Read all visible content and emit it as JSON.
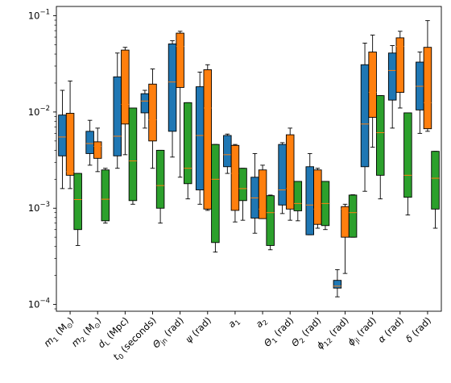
{
  "chart_data": {
    "type": "box",
    "y_scale": "log",
    "ylim": [
      8.5e-05,
      0.125
    ],
    "y_ticks": [
      {
        "value": 0.0001,
        "base": "10",
        "exp": "−4"
      },
      {
        "value": 0.001,
        "base": "10",
        "exp": "−3"
      },
      {
        "value": 0.01,
        "base": "10",
        "exp": "−2"
      },
      {
        "value": 0.1,
        "base": "10",
        "exp": "−1"
      }
    ],
    "categories": [
      {
        "main": "m",
        "sub": "1",
        "unit": " (M",
        "unit_sub": "⊙",
        "unit_end": ")"
      },
      {
        "main": "m",
        "sub": "2",
        "unit": " (M",
        "unit_sub": "⊙",
        "unit_end": ")"
      },
      {
        "main": "d",
        "sub": "L",
        "unit": " (Mpc)",
        "unit_sub": "",
        "unit_end": ""
      },
      {
        "main": "t",
        "sub": "0",
        "unit": " (seconds)",
        "unit_sub": "",
        "unit_end": ""
      },
      {
        "main": "Θ",
        "sub": "jn",
        "unit": " (rad)",
        "unit_sub": "",
        "unit_end": ""
      },
      {
        "main": "ψ",
        "sub": "",
        "unit": " (rad)",
        "unit_sub": "",
        "unit_end": ""
      },
      {
        "main": "a",
        "sub": "1",
        "unit": "",
        "unit_sub": "",
        "unit_end": ""
      },
      {
        "main": "a",
        "sub": "2",
        "unit": "",
        "unit_sub": "",
        "unit_end": ""
      },
      {
        "main": "Θ",
        "sub": "1",
        "unit": " (rad)",
        "unit_sub": "",
        "unit_end": ""
      },
      {
        "main": "Θ",
        "sub": "2",
        "unit": " (rad)",
        "unit_sub": "",
        "unit_end": ""
      },
      {
        "main": "ϕ",
        "sub": "12",
        "unit": " (rad)",
        "unit_sub": "",
        "unit_end": ""
      },
      {
        "main": "ϕ",
        "sub": "jl",
        "unit": " (rad)",
        "unit_sub": "",
        "unit_end": ""
      },
      {
        "main": "α",
        "sub": "",
        "unit": " (rad)",
        "unit_sub": "",
        "unit_end": ""
      },
      {
        "main": "δ",
        "sub": "",
        "unit": " (rad)",
        "unit_sub": "",
        "unit_end": ""
      }
    ],
    "series": [
      {
        "color": "#1f77b4",
        "boxes": [
          {
            "whislo": 0.0016,
            "q1": 0.0035,
            "med": 0.0055,
            "q3": 0.0093,
            "whishi": 0.0168
          },
          {
            "whislo": 0.0028,
            "q1": 0.0037,
            "med": 0.0047,
            "q3": 0.0063,
            "whishi": 0.0082
          },
          {
            "whislo": 0.0026,
            "q1": 0.0035,
            "med": 0.0056,
            "q3": 0.0232,
            "whishi": 0.041
          },
          {
            "whislo": 0.0068,
            "q1": 0.0098,
            "med": 0.013,
            "q3": 0.0155,
            "whishi": 0.0168
          },
          {
            "whislo": 0.0034,
            "q1": 0.0063,
            "med": 0.0205,
            "q3": 0.051,
            "whishi": 0.055
          },
          {
            "whislo": 0.0011,
            "q1": 0.00155,
            "med": 0.0057,
            "q3": 0.0183,
            "whishi": 0.026
          },
          {
            "whislo": 0.0023,
            "q1": 0.0027,
            "med": 0.0036,
            "q3": 0.0057,
            "whishi": 0.0059
          },
          {
            "whislo": 0.00055,
            "q1": 0.00079,
            "med": 0.00128,
            "q3": 0.0021,
            "whishi": 0.0037
          },
          {
            "whislo": 0.00088,
            "q1": 0.00108,
            "med": 0.00155,
            "q3": 0.0046,
            "whishi": 0.0048
          },
          {
            "whislo": 0.00053,
            "q1": 0.00053,
            "med": 0.00108,
            "q3": 0.0027,
            "whishi": 0.0037
          },
          {
            "whislo": 0.00012,
            "q1": 0.000148,
            "med": 0.000155,
            "q3": 0.000178,
            "whishi": 0.00023
          },
          {
            "whislo": 0.0015,
            "q1": 0.0027,
            "med": 0.0075,
            "q3": 0.031,
            "whishi": 0.052
          },
          {
            "whislo": 0.0068,
            "q1": 0.0133,
            "med": 0.027,
            "q3": 0.041,
            "whishi": 0.049
          },
          {
            "whislo": 0.006,
            "q1": 0.0105,
            "med": 0.0185,
            "q3": 0.033,
            "whishi": 0.042
          }
        ]
      },
      {
        "color": "#ff7f0e",
        "boxes": [
          {
            "whislo": 0.0016,
            "q1": 0.0022,
            "med": 0.0024,
            "q3": 0.0097,
            "whishi": 0.021
          },
          {
            "whislo": 0.0024,
            "q1": 0.0033,
            "med": 0.0044,
            "q3": 0.0049,
            "whishi": 0.0068
          },
          {
            "whislo": 0.0036,
            "q1": 0.0075,
            "med": 0.012,
            "q3": 0.044,
            "whishi": 0.047
          },
          {
            "whislo": 0.0026,
            "q1": 0.005,
            "med": 0.0083,
            "q3": 0.0195,
            "whishi": 0.028
          },
          {
            "whislo": 0.0021,
            "q1": 0.018,
            "med": 0.048,
            "q3": 0.066,
            "whishi": 0.069
          },
          {
            "whislo": 0.00095,
            "q1": 0.00098,
            "med": 0.011,
            "q3": 0.0275,
            "whishi": 0.031
          },
          {
            "whislo": 0.00072,
            "q1": 0.00095,
            "med": 0.0023,
            "q3": 0.0045,
            "whishi": 0.0046
          },
          {
            "whislo": 0.00078,
            "q1": 0.00078,
            "med": 0.00098,
            "q3": 0.0025,
            "whishi": 0.0028
          },
          {
            "whislo": 0.00075,
            "q1": 0.00098,
            "med": 0.0016,
            "q3": 0.0058,
            "whishi": 0.0068
          },
          {
            "whislo": 0.00062,
            "q1": 0.00068,
            "med": 0.00098,
            "q3": 0.0025,
            "whishi": 0.0026
          },
          {
            "whislo": 0.00021,
            "q1": 0.0005,
            "med": 0.00098,
            "q3": 0.00104,
            "whishi": 0.0011
          },
          {
            "whislo": 0.0043,
            "q1": 0.0088,
            "med": 0.016,
            "q3": 0.042,
            "whishi": 0.063
          },
          {
            "whislo": 0.011,
            "q1": 0.016,
            "med": 0.048,
            "q3": 0.059,
            "whishi": 0.069
          },
          {
            "whislo": 0.0063,
            "q1": 0.0067,
            "med": 0.0125,
            "q3": 0.047,
            "whishi": 0.089
          }
        ]
      },
      {
        "color": "#2ca02c",
        "boxes": [
          {
            "whislo": 0.00041,
            "q1": 0.0006,
            "med": 0.00123,
            "q3": 0.0023,
            "whishi": 0.0023
          },
          {
            "whislo": 0.0007,
            "q1": 0.00074,
            "med": 0.00124,
            "q3": 0.0025,
            "whishi": 0.0026
          },
          {
            "whislo": 0.0011,
            "q1": 0.0012,
            "med": 0.0031,
            "q3": 0.011,
            "whishi": 0.011
          },
          {
            "whislo": 0.0007,
            "q1": 0.001,
            "med": 0.00172,
            "q3": 0.004,
            "whishi": 0.004
          },
          {
            "whislo": 0.00125,
            "q1": 0.0018,
            "med": 0.0026,
            "q3": 0.0125,
            "whishi": 0.0125
          },
          {
            "whislo": 0.00035,
            "q1": 0.00044,
            "med": 0.002,
            "q3": 0.0046,
            "whishi": 0.0046
          },
          {
            "whislo": 0.00075,
            "q1": 0.0012,
            "med": 0.0016,
            "q3": 0.0026,
            "whishi": 0.0026
          },
          {
            "whislo": 0.00037,
            "q1": 0.00041,
            "med": 0.0009,
            "q3": 0.00135,
            "whishi": 0.00137
          },
          {
            "whislo": 0.00074,
            "q1": 0.00094,
            "med": 0.00112,
            "q3": 0.0019,
            "whishi": 0.0019
          },
          {
            "whislo": 0.0006,
            "q1": 0.00066,
            "med": 0.00112,
            "q3": 0.0019,
            "whishi": 0.0019
          },
          {
            "whislo": 0.0005,
            "q1": 0.0005,
            "med": 0.0009,
            "q3": 0.00137,
            "whishi": 0.00138
          },
          {
            "whislo": 0.00125,
            "q1": 0.0022,
            "med": 0.0061,
            "q3": 0.0148,
            "whishi": 0.0148
          },
          {
            "whislo": 0.00085,
            "q1": 0.0013,
            "med": 0.0022,
            "q3": 0.0098,
            "whishi": 0.0098
          },
          {
            "whislo": 0.00062,
            "q1": 0.00098,
            "med": 0.00205,
            "q3": 0.0039,
            "whishi": 0.0039
          }
        ]
      }
    ],
    "median_color": "#ff7f0e"
  }
}
